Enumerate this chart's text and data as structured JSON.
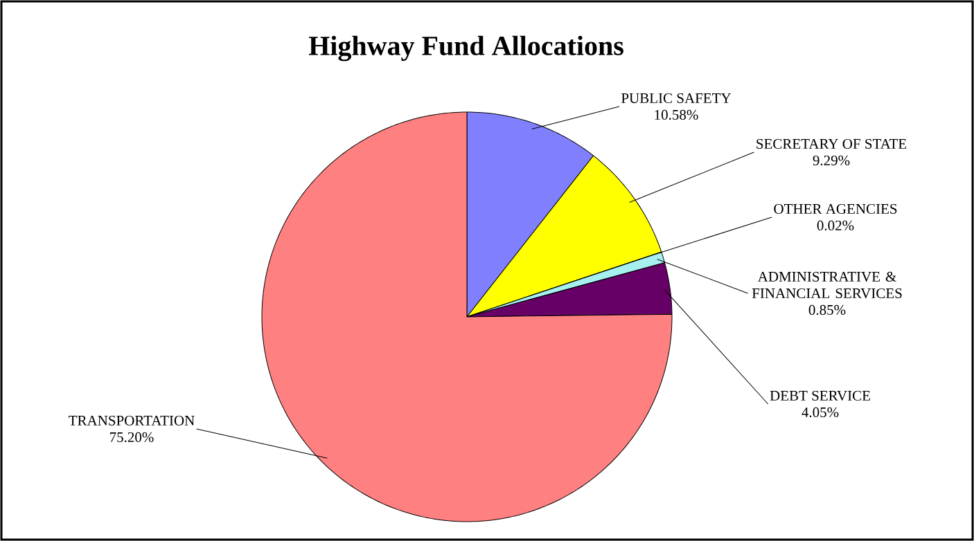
{
  "chart_data": {
    "type": "pie",
    "title": "Highway Fund Allocations",
    "categories": [
      "PUBLIC SAFETY",
      "SECRETARY OF STATE",
      "OTHER AGENCIES",
      "ADMINISTRATIVE & FINANCIAL SERVICES",
      "DEBT SERVICE",
      "TRANSPORTATION"
    ],
    "values": [
      10.58,
      9.29,
      0.02,
      0.85,
      4.05,
      75.2
    ],
    "value_labels": [
      "10.58%",
      "9.29%",
      "0.02%",
      "0.85%",
      "4.05%",
      "75.20%"
    ],
    "colors": [
      "#8080ff",
      "#ffff00",
      "#00ff00",
      "#a6f0f0",
      "#660066",
      "#ff8080"
    ],
    "legend": false
  }
}
